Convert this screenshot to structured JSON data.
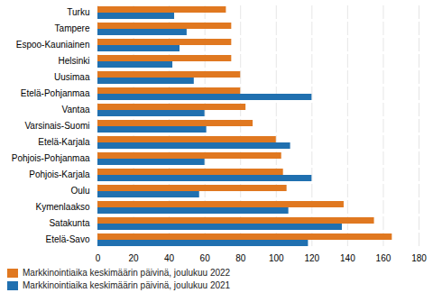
{
  "chart_data": {
    "type": "bar",
    "orientation": "horizontal",
    "categories": [
      "Turku",
      "Tampere",
      "Espoo-Kauniainen",
      "Helsinki",
      "Uusimaa",
      "Etelä-Pohjanmaa",
      "Vantaa",
      "Varsinais-Suomi",
      "Etelä-Karjala",
      "Pohjois-Pohjanmaa",
      "Pohjois-Karjala",
      "Oulu",
      "Kymenlaakso",
      "Satakunta",
      "Etelä-Savo"
    ],
    "series": [
      {
        "name": "Markkinointiaika keskimäärin päivinä, joulukuu 2022",
        "color": "#E07820",
        "values": [
          72,
          75,
          75,
          75,
          80,
          80,
          83,
          87,
          100,
          103,
          104,
          106,
          138,
          155,
          165
        ]
      },
      {
        "name": "Markkinointiaika keskimäärin päivinä, joulukuu 2021",
        "color": "#2070B0",
        "values": [
          43,
          50,
          46,
          42,
          54,
          120,
          60,
          61,
          108,
          60,
          120,
          57,
          107,
          137,
          118
        ]
      }
    ],
    "xlim": [
      0,
      180
    ],
    "xticks": [
      0,
      20,
      40,
      60,
      80,
      100,
      120,
      140,
      160,
      180
    ],
    "grid": true,
    "legend": "lower left"
  }
}
